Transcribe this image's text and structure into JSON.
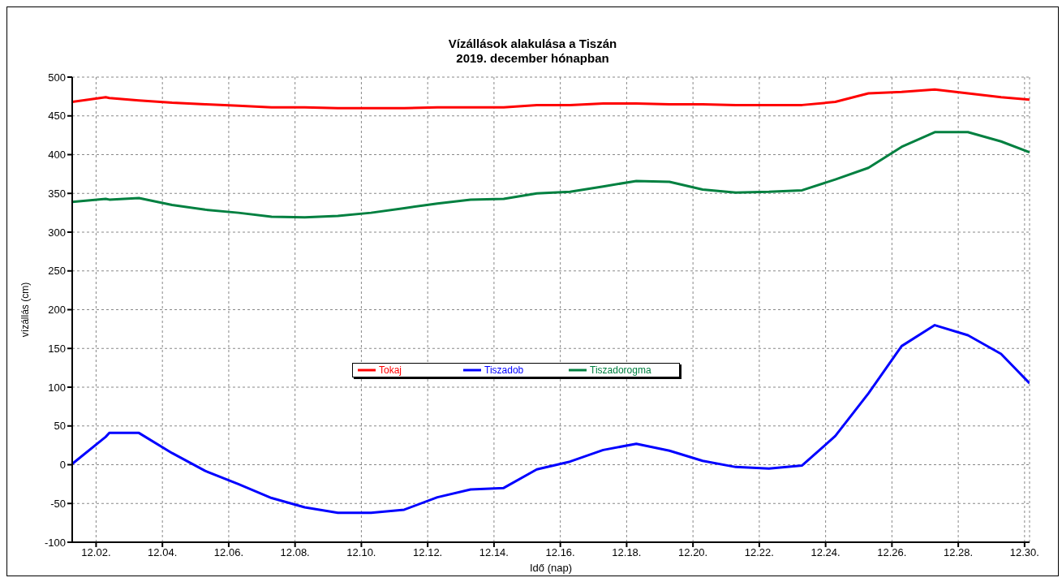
{
  "chart_data": {
    "type": "line",
    "title": "Vízállások alakulása a Tiszán\n2019. december hónapban",
    "xlabel": "Idő (nap)",
    "ylabel": "vízállás (cm)",
    "x": [
      "2019-12-01T06:43",
      "2019-12-02T07:00",
      "2019-12-02T09:36",
      "2019-12-03T07:00",
      "2019-12-04T07:00",
      "2019-12-05T07:00",
      "2019-12-06T07:00",
      "2019-12-07T07:00",
      "2019-12-08T07:00",
      "2019-12-09T07:00",
      "2019-12-10T07:00",
      "2019-12-11T07:00",
      "2019-12-12T07:00",
      "2019-12-13T07:00",
      "2019-12-14T07:00",
      "2019-12-15T07:00",
      "2019-12-16T07:00",
      "2019-12-17T07:00",
      "2019-12-18T07:00",
      "2019-12-19T07:00",
      "2019-12-20T07:00",
      "2019-12-21T07:00",
      "2019-12-22T07:00",
      "2019-12-23T07:00",
      "2019-12-24T07:00",
      "2019-12-25T07:00",
      "2019-12-26T07:00",
      "2019-12-27T07:00",
      "2019-12-28T07:00",
      "2019-12-29T07:00",
      "2019-12-30T03:36"
    ],
    "series": [
      {
        "name": "Tokaj",
        "color": "#ff0000",
        "values": [
          468,
          474,
          473,
          470,
          467,
          465,
          463,
          461,
          461,
          460,
          460,
          460,
          461,
          461,
          461,
          464,
          464,
          466,
          466,
          465,
          465,
          464,
          464,
          464,
          468,
          479,
          481,
          484,
          479,
          474,
          471
        ]
      },
      {
        "name": "Tiszadob",
        "color": "#0000ff",
        "values": [
          1,
          36,
          41,
          41,
          15,
          -8,
          -25,
          -43,
          -55,
          -62,
          -62,
          -58,
          -42,
          -32,
          -30,
          -6,
          4,
          19,
          27,
          18,
          5,
          -3,
          -5,
          -1,
          37,
          92,
          153,
          180,
          167,
          143,
          105
        ]
      },
      {
        "name": "Tiszadorogma",
        "color": "#008040",
        "values": [
          339,
          343,
          342,
          344,
          335,
          329,
          325,
          320,
          319,
          321,
          325,
          331,
          337,
          342,
          343,
          350,
          352,
          359,
          366,
          365,
          355,
          351,
          352,
          354,
          368,
          383,
          410,
          429,
          429,
          417,
          403
        ]
      }
    ],
    "xlim": [
      "2019-12-01T06:43",
      "2019-12-30T03:36"
    ],
    "xticks": [
      {
        "value": "2019-12-02",
        "label": "12.02."
      },
      {
        "value": "2019-12-04",
        "label": "12.04."
      },
      {
        "value": "2019-12-06",
        "label": "12.06."
      },
      {
        "value": "2019-12-08",
        "label": "12.08."
      },
      {
        "value": "2019-12-10",
        "label": "12.10."
      },
      {
        "value": "2019-12-12",
        "label": "12.12."
      },
      {
        "value": "2019-12-14",
        "label": "12.14."
      },
      {
        "value": "2019-12-16",
        "label": "12.16."
      },
      {
        "value": "2019-12-18",
        "label": "12.18."
      },
      {
        "value": "2019-12-20",
        "label": "12.20."
      },
      {
        "value": "2019-12-22",
        "label": "12.22."
      },
      {
        "value": "2019-12-24",
        "label": "12.24."
      },
      {
        "value": "2019-12-26",
        "label": "12.26."
      },
      {
        "value": "2019-12-28",
        "label": "12.28."
      },
      {
        "value": "2019-12-30",
        "label": "12.30."
      }
    ],
    "ylim": [
      -100,
      500
    ],
    "yticks": [
      -100,
      -50,
      0,
      50,
      100,
      150,
      200,
      250,
      300,
      350,
      400,
      450,
      500
    ],
    "grid": true,
    "legend": "center",
    "marker": "none",
    "line_style": "solid"
  }
}
